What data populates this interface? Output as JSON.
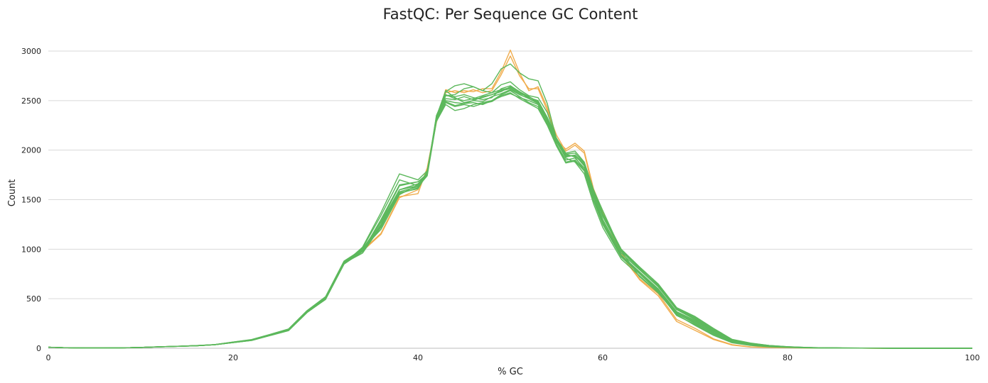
{
  "chart_data": {
    "type": "line",
    "title": "FastQC: Per Sequence GC Content",
    "xlabel": "% GC",
    "ylabel": "Count",
    "xlim": [
      0,
      100
    ],
    "ylim": [
      0,
      3000
    ],
    "xticks": [
      0,
      20,
      40,
      60,
      80,
      100
    ],
    "yticks": [
      0,
      500,
      1000,
      1500,
      2000,
      2500,
      3000
    ],
    "grid": "horizontal",
    "colors": {
      "pass": "#5cb85c",
      "warn": "#f0ad4e"
    },
    "x": [
      0,
      2,
      4,
      6,
      8,
      10,
      12,
      14,
      16,
      18,
      20,
      22,
      24,
      26,
      28,
      30,
      32,
      34,
      36,
      38,
      40,
      41,
      42,
      43,
      44,
      45,
      46,
      47,
      48,
      49,
      50,
      51,
      52,
      53,
      54,
      55,
      56,
      57,
      58,
      59,
      60,
      62,
      64,
      66,
      68,
      70,
      72,
      74,
      76,
      78,
      80,
      82,
      84,
      86,
      88,
      90,
      92,
      94,
      96,
      98,
      100
    ],
    "series": [
      {
        "status": "warn",
        "values": [
          10,
          5,
          3,
          3,
          4,
          8,
          15,
          20,
          26,
          36,
          62,
          82,
          135,
          190,
          375,
          510,
          870,
          990,
          1160,
          1530,
          1560,
          1820,
          2300,
          2610,
          2580,
          2600,
          2590,
          2620,
          2620,
          2790,
          3010,
          2780,
          2600,
          2640,
          2430,
          2100,
          2010,
          2070,
          1990,
          1610,
          1380,
          960,
          700,
          550,
          290,
          200,
          95,
          36,
          14,
          9,
          5,
          3,
          2,
          1,
          1,
          0,
          0,
          0,
          0,
          0,
          0
        ]
      },
      {
        "status": "warn",
        "values": [
          10,
          5,
          3,
          3,
          4,
          8,
          14,
          19,
          25,
          35,
          60,
          80,
          130,
          185,
          370,
          505,
          860,
          980,
          1150,
          1520,
          1600,
          1800,
          2280,
          2580,
          2600,
          2580,
          2610,
          2580,
          2600,
          2760,
          2950,
          2750,
          2620,
          2620,
          2400,
          2150,
          1990,
          2050,
          1970,
          1590,
          1360,
          940,
          690,
          530,
          270,
          180,
          88,
          32,
          12,
          8,
          5,
          3,
          2,
          1,
          1,
          0,
          0,
          0,
          0,
          0,
          0
        ]
      },
      {
        "status": "pass",
        "values": [
          10,
          5,
          3,
          3,
          4,
          8,
          15,
          20,
          27,
          37,
          63,
          88,
          140,
          195,
          380,
          520,
          880,
          1000,
          1200,
          1550,
          1650,
          1750,
          2330,
          2590,
          2650,
          2670,
          2640,
          2600,
          2670,
          2820,
          2870,
          2780,
          2720,
          2700,
          2470,
          2110,
          1960,
          1930,
          1800,
          1600,
          1390,
          980,
          720,
          560,
          350,
          250,
          150,
          65,
          35,
          20,
          12,
          6,
          3,
          2,
          1,
          1,
          0,
          0,
          0,
          0,
          0
        ]
      },
      {
        "status": "pass",
        "values": [
          10,
          5,
          3,
          3,
          4,
          8,
          14,
          19,
          25,
          35,
          58,
          80,
          130,
          185,
          370,
          500,
          860,
          960,
          1230,
          1560,
          1620,
          1760,
          2300,
          2550,
          2560,
          2620,
          2640,
          2600,
          2580,
          2660,
          2690,
          2610,
          2550,
          2530,
          2380,
          2110,
          1950,
          1940,
          1850,
          1500,
          1280,
          940,
          750,
          570,
          330,
          240,
          140,
          60,
          32,
          18,
          10,
          5,
          3,
          2,
          1,
          1,
          0,
          0,
          0,
          0,
          0
        ]
      },
      {
        "status": "pass",
        "values": [
          10,
          5,
          3,
          3,
          4,
          8,
          15,
          20,
          26,
          36,
          60,
          84,
          135,
          190,
          375,
          510,
          870,
          1000,
          1270,
          1600,
          1660,
          1760,
          2340,
          2600,
          2530,
          2480,
          2500,
          2540,
          2560,
          2590,
          2640,
          2590,
          2520,
          2480,
          2300,
          2090,
          1920,
          1880,
          1760,
          1460,
          1220,
          900,
          730,
          560,
          340,
          230,
          130,
          55,
          28,
          15,
          9,
          4,
          2,
          1,
          1,
          0,
          0,
          0,
          0,
          0,
          0
        ]
      },
      {
        "status": "pass",
        "values": [
          10,
          5,
          3,
          3,
          4,
          8,
          14,
          19,
          25,
          35,
          57,
          78,
          128,
          178,
          360,
          495,
          850,
          980,
          1300,
          1650,
          1680,
          1760,
          2300,
          2500,
          2480,
          2470,
          2500,
          2490,
          2540,
          2570,
          2610,
          2560,
          2520,
          2470,
          2290,
          2080,
          1930,
          1950,
          1840,
          1550,
          1300,
          960,
          790,
          620,
          390,
          300,
          180,
          80,
          45,
          25,
          15,
          8,
          5,
          3,
          2,
          1,
          1,
          0,
          0,
          0,
          0
        ]
      },
      {
        "status": "pass",
        "values": [
          10,
          5,
          3,
          3,
          4,
          8,
          15,
          20,
          26,
          36,
          60,
          82,
          132,
          188,
          372,
          508,
          865,
          1010,
          1340,
          1700,
          1640,
          1780,
          2320,
          2520,
          2510,
          2540,
          2510,
          2530,
          2560,
          2600,
          2620,
          2570,
          2540,
          2490,
          2320,
          2100,
          1960,
          1970,
          1870,
          1570,
          1330,
          980,
          800,
          640,
          400,
          310,
          190,
          85,
          50,
          28,
          16,
          8,
          5,
          3,
          2,
          1,
          1,
          0,
          0,
          0,
          0
        ]
      },
      {
        "status": "pass",
        "values": [
          10,
          5,
          3,
          3,
          4,
          8,
          14,
          19,
          25,
          35,
          58,
          80,
          130,
          182,
          365,
          500,
          855,
          1020,
          1370,
          1760,
          1700,
          1790,
          2310,
          2490,
          2450,
          2470,
          2480,
          2460,
          2500,
          2540,
          2570,
          2530,
          2500,
          2460,
          2280,
          2060,
          1900,
          1920,
          1820,
          1530,
          1280,
          940,
          770,
          600,
          370,
          280,
          170,
          75,
          40,
          22,
          13,
          7,
          4,
          2,
          1,
          1,
          0,
          0,
          0,
          0,
          0
        ]
      },
      {
        "status": "pass",
        "values": [
          10,
          5,
          3,
          3,
          4,
          8,
          15,
          20,
          26,
          36,
          61,
          84,
          134,
          186,
          370,
          505,
          862,
          990,
          1280,
          1640,
          1680,
          1750,
          2340,
          2550,
          2540,
          2560,
          2530,
          2510,
          2530,
          2620,
          2650,
          2590,
          2540,
          2480,
          2310,
          2090,
          1940,
          1950,
          1860,
          1580,
          1340,
          990,
          810,
          630,
          390,
          290,
          180,
          80,
          45,
          24,
          14,
          7,
          4,
          2,
          1,
          1,
          0,
          0,
          0,
          0,
          0
        ]
      },
      {
        "status": "pass",
        "values": [
          10,
          5,
          3,
          3,
          4,
          8,
          14,
          19,
          25,
          35,
          59,
          81,
          131,
          184,
          368,
          498,
          858,
          985,
          1240,
          1580,
          1630,
          1740,
          2290,
          2460,
          2400,
          2420,
          2460,
          2480,
          2500,
          2560,
          2600,
          2540,
          2480,
          2440,
          2260,
          2050,
          1880,
          1900,
          1800,
          1500,
          1260,
          930,
          760,
          590,
          360,
          270,
          160,
          70,
          38,
          20,
          12,
          6,
          3,
          2,
          1,
          1,
          0,
          0,
          0,
          0,
          0
        ]
      },
      {
        "status": "pass",
        "values": [
          10,
          5,
          3,
          3,
          4,
          8,
          15,
          20,
          26,
          36,
          62,
          85,
          136,
          192,
          378,
          512,
          870,
          995,
          1250,
          1600,
          1640,
          1770,
          2350,
          2560,
          2520,
          2500,
          2520,
          2550,
          2580,
          2610,
          2630,
          2580,
          2530,
          2500,
          2330,
          2120,
          1970,
          1990,
          1880,
          1600,
          1360,
          1000,
          820,
          650,
          410,
          320,
          200,
          90,
          52,
          28,
          16,
          8,
          5,
          3,
          2,
          1,
          1,
          0,
          0,
          0,
          0
        ]
      },
      {
        "status": "pass",
        "values": [
          10,
          5,
          3,
          3,
          4,
          8,
          14,
          19,
          25,
          35,
          57,
          79,
          129,
          180,
          362,
          492,
          850,
          975,
          1220,
          1570,
          1610,
          1760,
          2300,
          2480,
          2440,
          2460,
          2440,
          2470,
          2490,
          2550,
          2580,
          2520,
          2470,
          2420,
          2250,
          2040,
          1870,
          1890,
          1790,
          1490,
          1250,
          920,
          750,
          580,
          350,
          260,
          150,
          65,
          35,
          18,
          11,
          6,
          3,
          2,
          1,
          1,
          0,
          0,
          0,
          0,
          0
        ]
      }
    ]
  }
}
